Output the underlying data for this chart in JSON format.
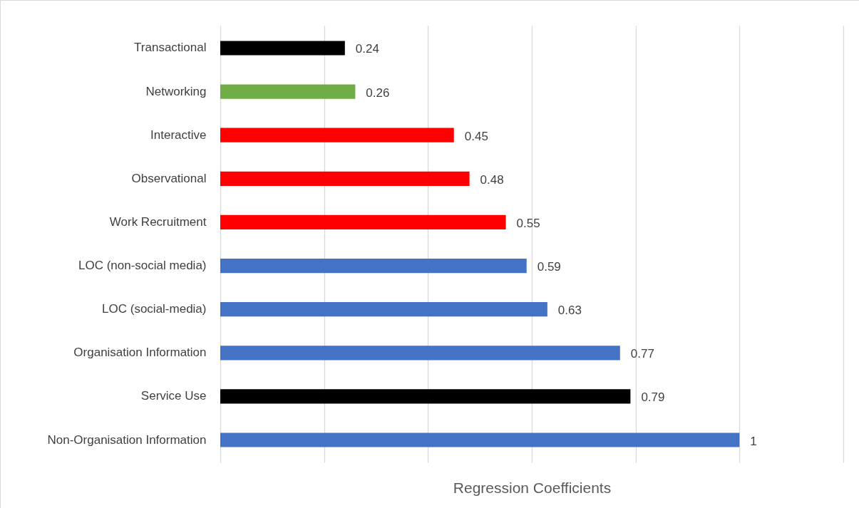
{
  "chart_data": {
    "type": "bar",
    "orientation": "horizontal",
    "xlabel": "Regression Coefficients",
    "categories": [
      "Transactional",
      "Networking",
      "Interactive",
      "Observational",
      "Work Recruitment",
      "LOC (non-social media)",
      "LOC (social-media)",
      "Organisation Information",
      "Service Use",
      "Non-Organisation Information"
    ],
    "values": [
      0.24,
      0.26,
      0.45,
      0.48,
      0.55,
      0.59,
      0.63,
      0.77,
      0.79,
      1
    ],
    "colors": [
      "#000000",
      "#70ad47",
      "#ff0000",
      "#ff0000",
      "#ff0000",
      "#4472c4",
      "#4472c4",
      "#4472c4",
      "#000000",
      "#4472c4"
    ],
    "xlim": [
      0,
      1.2
    ],
    "xticks": [
      {
        "value": 0,
        "label": null
      },
      {
        "value": 0.2,
        "label": null
      },
      {
        "value": 0.4,
        "label": null
      },
      {
        "value": 0.6,
        "label": null
      },
      {
        "value": 0.8,
        "label": null
      },
      {
        "value": 1,
        "label": null
      },
      {
        "value": 1.2,
        "label": null
      }
    ],
    "grid": "x",
    "tick_labels": "y",
    "data_labels": true
  }
}
